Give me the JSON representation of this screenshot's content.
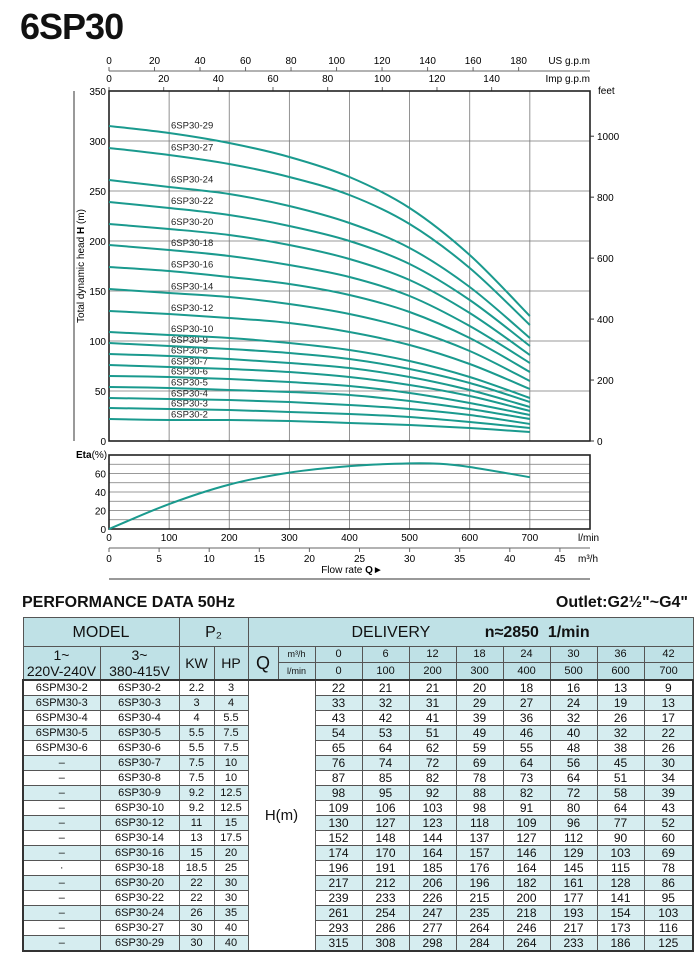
{
  "title": "6SP30",
  "chart_data": [
    {
      "type": "line",
      "title": "",
      "ylabel_prefix": "Total dynamic head ",
      "ylabel_bold": "H",
      "ylabel_suffix": " (m)",
      "ylim": [
        0,
        350
      ],
      "yticks": [
        0,
        50,
        100,
        150,
        200,
        250,
        300,
        350
      ],
      "xlim_lmin": [
        0,
        800
      ],
      "right_axis": {
        "label": "feet",
        "ticks": [
          0,
          200,
          400,
          600,
          800,
          1000
        ]
      },
      "top_axes": [
        {
          "label": "US g.p.m",
          "ticks": [
            0,
            20,
            40,
            60,
            80,
            100,
            120,
            140,
            160,
            180
          ]
        },
        {
          "label": "Imp g.p.m",
          "ticks": [
            0,
            20,
            40,
            60,
            80,
            100,
            120,
            140
          ]
        }
      ],
      "grid": true,
      "x_lmin": [
        0,
        100,
        200,
        300,
        400,
        500,
        600,
        700
      ],
      "series": [
        {
          "name": "6SP30-2",
          "values": [
            22,
            21,
            21,
            20,
            18,
            16,
            13,
            9
          ]
        },
        {
          "name": "6SP30-3",
          "values": [
            33,
            32,
            31,
            29,
            27,
            24,
            19,
            13
          ]
        },
        {
          "name": "6SP30-4",
          "values": [
            43,
            42,
            41,
            39,
            36,
            32,
            26,
            17
          ]
        },
        {
          "name": "6SP30-5",
          "values": [
            54,
            53,
            51,
            49,
            46,
            40,
            32,
            22
          ]
        },
        {
          "name": "6SP30-6",
          "values": [
            65,
            64,
            62,
            59,
            55,
            48,
            38,
            26
          ]
        },
        {
          "name": "6SP30-7",
          "values": [
            76,
            74,
            72,
            69,
            64,
            56,
            45,
            30
          ]
        },
        {
          "name": "6SP30-8",
          "values": [
            87,
            85,
            82,
            78,
            73,
            64,
            51,
            34
          ]
        },
        {
          "name": "6SP30-9",
          "values": [
            98,
            95,
            92,
            88,
            82,
            72,
            58,
            39
          ]
        },
        {
          "name": "6SP30-10",
          "values": [
            109,
            106,
            103,
            98,
            91,
            80,
            64,
            43
          ]
        },
        {
          "name": "6SP30-12",
          "values": [
            130,
            127,
            123,
            118,
            109,
            96,
            77,
            52
          ]
        },
        {
          "name": "6SP30-14",
          "values": [
            152,
            148,
            144,
            137,
            127,
            112,
            90,
            60
          ]
        },
        {
          "name": "6SP30-16",
          "values": [
            174,
            170,
            164,
            157,
            146,
            129,
            103,
            69
          ]
        },
        {
          "name": "6SP30-18",
          "values": [
            196,
            191,
            185,
            176,
            164,
            145,
            115,
            78
          ]
        },
        {
          "name": "6SP30-20",
          "values": [
            217,
            212,
            206,
            196,
            182,
            161,
            128,
            86
          ]
        },
        {
          "name": "6SP30-22",
          "values": [
            239,
            233,
            226,
            215,
            200,
            177,
            141,
            95
          ]
        },
        {
          "name": "6SP30-24",
          "values": [
            261,
            254,
            247,
            235,
            218,
            193,
            154,
            103
          ]
        },
        {
          "name": "6SP30-27",
          "values": [
            293,
            286,
            277,
            264,
            246,
            217,
            173,
            116
          ]
        },
        {
          "name": "6SP30-29",
          "values": [
            315,
            308,
            298,
            284,
            264,
            233,
            186,
            125
          ]
        }
      ],
      "line_color": "#1a9a8e"
    },
    {
      "type": "line",
      "ylabel_bold": "Eta",
      "ylabel_suffix": "(%)",
      "ylim": [
        0,
        80
      ],
      "yticks": [
        0,
        20,
        40,
        60
      ],
      "x_lmin": [
        0,
        100,
        200,
        300,
        400,
        500,
        550,
        600,
        700
      ],
      "values": [
        0,
        27,
        48,
        61,
        68,
        71,
        70.5,
        67,
        56
      ],
      "xticks_lmin": [
        0,
        100,
        200,
        300,
        400,
        500,
        600,
        700
      ],
      "xunit_lmin": "l/min",
      "xticks_m3h": [
        0,
        5,
        10,
        15,
        20,
        25,
        30,
        35,
        40,
        45
      ],
      "xunit_m3h": "m³/h",
      "xlabel": "Flow rate ",
      "xlabel_bold": "Q",
      "xlabel_arrow": "►",
      "grid": true,
      "line_color": "#1a9a8e"
    }
  ],
  "performance": {
    "title": "PERFORMANCE DATA 50Hz",
    "outlet_prefix": "Outlet:G2",
    "outlet_frac": "½",
    "outlet_suffix": "\"~G4\"",
    "header": {
      "model": "MODEL",
      "p2": "P₂",
      "delivery": "DELIVERY",
      "speed": "n≈2850  1/min",
      "single_phase_a": "1~",
      "single_phase_b": "220V-240V",
      "three_phase_a": "3~",
      "three_phase_b": "380-415V",
      "kw": "KW",
      "hp": "HP",
      "q": "Q",
      "unit_m3h": "m³/h",
      "unit_lmin": "l/min",
      "flow_m3h": [
        "0",
        "6",
        "12",
        "18",
        "24",
        "30",
        "36",
        "42"
      ],
      "flow_lmin": [
        "0",
        "100",
        "200",
        "300",
        "400",
        "500",
        "600",
        "700"
      ],
      "head_label": "H(m)"
    },
    "rows": [
      {
        "single": "6SPM30-2",
        "three": "6SP30-2",
        "kw": "2.2",
        "hp": "3",
        "h": [
          "22",
          "21",
          "21",
          "20",
          "18",
          "16",
          "13",
          "9"
        ]
      },
      {
        "single": "6SPM30-3",
        "three": "6SP30-3",
        "kw": "3",
        "hp": "4",
        "h": [
          "33",
          "32",
          "31",
          "29",
          "27",
          "24",
          "19",
          "13"
        ]
      },
      {
        "single": "6SPM30-4",
        "three": "6SP30-4",
        "kw": "4",
        "hp": "5.5",
        "h": [
          "43",
          "42",
          "41",
          "39",
          "36",
          "32",
          "26",
          "17"
        ]
      },
      {
        "single": "6SPM30-5",
        "three": "6SP30-5",
        "kw": "5.5",
        "hp": "7.5",
        "h": [
          "54",
          "53",
          "51",
          "49",
          "46",
          "40",
          "32",
          "22"
        ]
      },
      {
        "single": "6SPM30-6",
        "three": "6SP30-6",
        "kw": "5.5",
        "hp": "7.5",
        "h": [
          "65",
          "64",
          "62",
          "59",
          "55",
          "48",
          "38",
          "26"
        ]
      },
      {
        "single": "–",
        "three": "6SP30-7",
        "kw": "7.5",
        "hp": "10",
        "h": [
          "76",
          "74",
          "72",
          "69",
          "64",
          "56",
          "45",
          "30"
        ]
      },
      {
        "single": "–",
        "three": "6SP30-8",
        "kw": "7.5",
        "hp": "10",
        "h": [
          "87",
          "85",
          "82",
          "78",
          "73",
          "64",
          "51",
          "34"
        ]
      },
      {
        "single": "–",
        "three": "6SP30-9",
        "kw": "9.2",
        "hp": "12.5",
        "h": [
          "98",
          "95",
          "92",
          "88",
          "82",
          "72",
          "58",
          "39"
        ]
      },
      {
        "single": "–",
        "three": "6SP30-10",
        "kw": "9.2",
        "hp": "12.5",
        "h": [
          "109",
          "106",
          "103",
          "98",
          "91",
          "80",
          "64",
          "43"
        ]
      },
      {
        "single": "–",
        "three": "6SP30-12",
        "kw": "11",
        "hp": "15",
        "h": [
          "130",
          "127",
          "123",
          "118",
          "109",
          "96",
          "77",
          "52"
        ]
      },
      {
        "single": "–",
        "three": "6SP30-14",
        "kw": "13",
        "hp": "17.5",
        "h": [
          "152",
          "148",
          "144",
          "137",
          "127",
          "112",
          "90",
          "60"
        ]
      },
      {
        "single": "–",
        "three": "6SP30-16",
        "kw": "15",
        "hp": "20",
        "h": [
          "174",
          "170",
          "164",
          "157",
          "146",
          "129",
          "103",
          "69"
        ]
      },
      {
        "single": "·",
        "three": "6SP30-18",
        "kw": "18.5",
        "hp": "25",
        "h": [
          "196",
          "191",
          "185",
          "176",
          "164",
          "145",
          "115",
          "78"
        ]
      },
      {
        "single": "–",
        "three": "6SP30-20",
        "kw": "22",
        "hp": "30",
        "h": [
          "217",
          "212",
          "206",
          "196",
          "182",
          "161",
          "128",
          "86"
        ]
      },
      {
        "single": "–",
        "three": "6SP30-22",
        "kw": "22",
        "hp": "30",
        "h": [
          "239",
          "233",
          "226",
          "215",
          "200",
          "177",
          "141",
          "95"
        ]
      },
      {
        "single": "–",
        "three": "6SP30-24",
        "kw": "26",
        "hp": "35",
        "h": [
          "261",
          "254",
          "247",
          "235",
          "218",
          "193",
          "154",
          "103"
        ]
      },
      {
        "single": "–",
        "three": "6SP30-27",
        "kw": "30",
        "hp": "40",
        "h": [
          "293",
          "286",
          "277",
          "264",
          "246",
          "217",
          "173",
          "116"
        ]
      },
      {
        "single": "–",
        "three": "6SP30-29",
        "kw": "30",
        "hp": "40",
        "h": [
          "315",
          "308",
          "298",
          "284",
          "264",
          "233",
          "186",
          "125"
        ]
      }
    ],
    "colors": {
      "header": "#bfe1e6",
      "stripe": "#d6edf0"
    }
  }
}
